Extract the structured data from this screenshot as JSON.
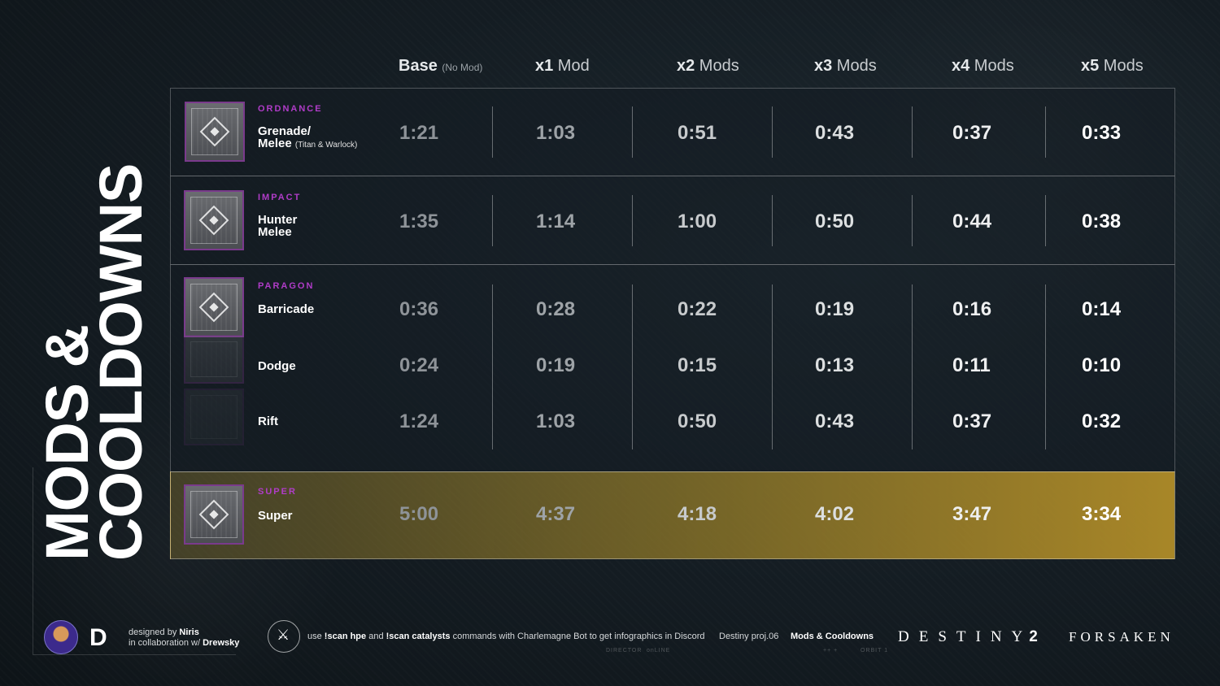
{
  "title": {
    "line1": "MODS &",
    "line2": "COOLDOWNS"
  },
  "headers": [
    {
      "bold": "Base",
      "rest": "",
      "small": "(No Mod)"
    },
    {
      "bold": "x1",
      "rest": " Mod",
      "small": ""
    },
    {
      "bold": "x2",
      "rest": " Mods",
      "small": ""
    },
    {
      "bold": "x3",
      "rest": " Mods",
      "small": ""
    },
    {
      "bold": "x4",
      "rest": " Mods",
      "small": ""
    },
    {
      "bold": "x5",
      "rest": " Mods",
      "small": ""
    }
  ],
  "rows": [
    {
      "category": "ORDNANCE",
      "name_line1": "Grenade/",
      "name_line2": "Melee",
      "name_note": "(Titan & Warlock)",
      "values": [
        "1:21",
        "1:03",
        "0:51",
        "0:43",
        "0:37",
        "0:33"
      ]
    },
    {
      "category": "IMPACT",
      "name_line1": "Hunter",
      "name_line2": "Melee",
      "name_note": "",
      "values": [
        "1:35",
        "1:14",
        "1:00",
        "0:50",
        "0:44",
        "0:38"
      ]
    },
    {
      "category": "PARAGON",
      "sub": [
        {
          "name": "Barricade",
          "values": [
            "0:36",
            "0:28",
            "0:22",
            "0:19",
            "0:16",
            "0:14"
          ]
        },
        {
          "name": "Dodge",
          "values": [
            "0:24",
            "0:19",
            "0:15",
            "0:13",
            "0:11",
            "0:10"
          ]
        },
        {
          "name": "Rift",
          "values": [
            "1:24",
            "1:03",
            "0:50",
            "0:43",
            "0:37",
            "0:32"
          ]
        }
      ]
    },
    {
      "category": "SUPER",
      "name": "Super",
      "values": [
        "5:00",
        "4:37",
        "4:18",
        "4:02",
        "3:47",
        "3:34"
      ]
    }
  ],
  "value_colors": [
    "#8e9398",
    "#9ea3a7",
    "#c7cacc",
    "#dcdfe0",
    "#eeeff0",
    "#ffffff"
  ],
  "accent": "#b03cc8",
  "footer": {
    "designed_by_prefix": "designed by ",
    "designer": "Niris",
    "collab_prefix": "in collaboration w/ ",
    "collaborator": "Drewsky",
    "d_logo": "D",
    "scan_use": "use ",
    "scan_cmd1": "!scan hpe",
    "scan_and": " and ",
    "scan_cmd2": "!scan catalysts",
    "scan_rest": " commands with Charlemagne Bot to get infographics in Discord",
    "project": "Destiny proj.06",
    "project_name": "Mods & Cooldowns",
    "brand_destiny": "DESTINY",
    "brand_two": "2",
    "brand_forsaken": "FORSAKEN",
    "tiny1": "DIRECTOR",
    "tiny2": "onLINE",
    "tiny3": "++ +",
    "tiny4": "ORBIT 1"
  }
}
